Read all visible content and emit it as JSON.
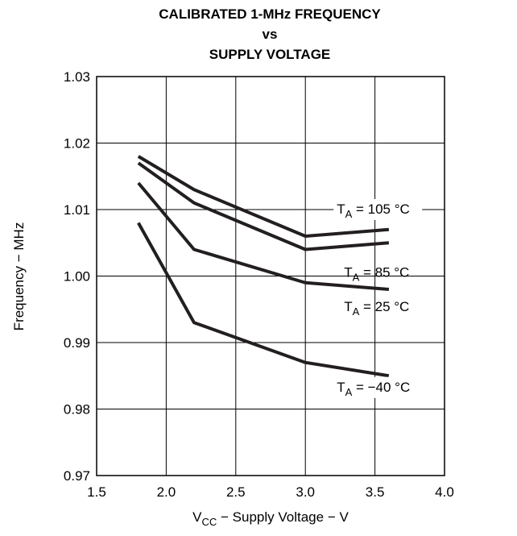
{
  "chart_data": {
    "type": "line",
    "title": [
      "CALIBRATED 1-MHz FREQUENCY",
      "vs",
      "SUPPLY VOLTAGE"
    ],
    "xlabel": {
      "prefix": "V",
      "sub": "CC",
      "rest": " − Supply Voltage − V"
    },
    "ylabel": "Frequency − MHz",
    "xlim": [
      1.5,
      4.0
    ],
    "ylim": [
      0.97,
      1.03
    ],
    "x_ticks": [
      "1.5",
      "2.0",
      "2.5",
      "3.0",
      "3.5",
      "4.0"
    ],
    "y_ticks": [
      "0.97",
      "0.98",
      "0.99",
      "1.00",
      "1.01",
      "1.02",
      "1.03"
    ],
    "grid": true,
    "line_color": "#231f20",
    "series": [
      {
        "name": {
          "prefix": "T",
          "sub": "A",
          "rest": " = 105 °C"
        },
        "x": [
          1.8,
          2.2,
          3.0,
          3.6
        ],
        "y": [
          1.018,
          1.013,
          1.006,
          1.007
        ]
      },
      {
        "name": {
          "prefix": "T",
          "sub": "A",
          "rest": " = 85 °C"
        },
        "x": [
          1.8,
          2.2,
          3.0,
          3.6
        ],
        "y": [
          1.017,
          1.011,
          1.004,
          1.005
        ]
      },
      {
        "name": {
          "prefix": "T",
          "sub": "A",
          "rest": " = 25 °C"
        },
        "x": [
          1.8,
          2.2,
          3.0,
          3.6
        ],
        "y": [
          1.014,
          1.004,
          0.999,
          0.998
        ]
      },
      {
        "name": {
          "prefix": "T",
          "sub": "A",
          "rest": " = −40 °C"
        },
        "x": [
          1.8,
          2.2,
          3.0,
          3.6
        ],
        "y": [
          1.008,
          0.993,
          0.987,
          0.985
        ]
      }
    ]
  }
}
